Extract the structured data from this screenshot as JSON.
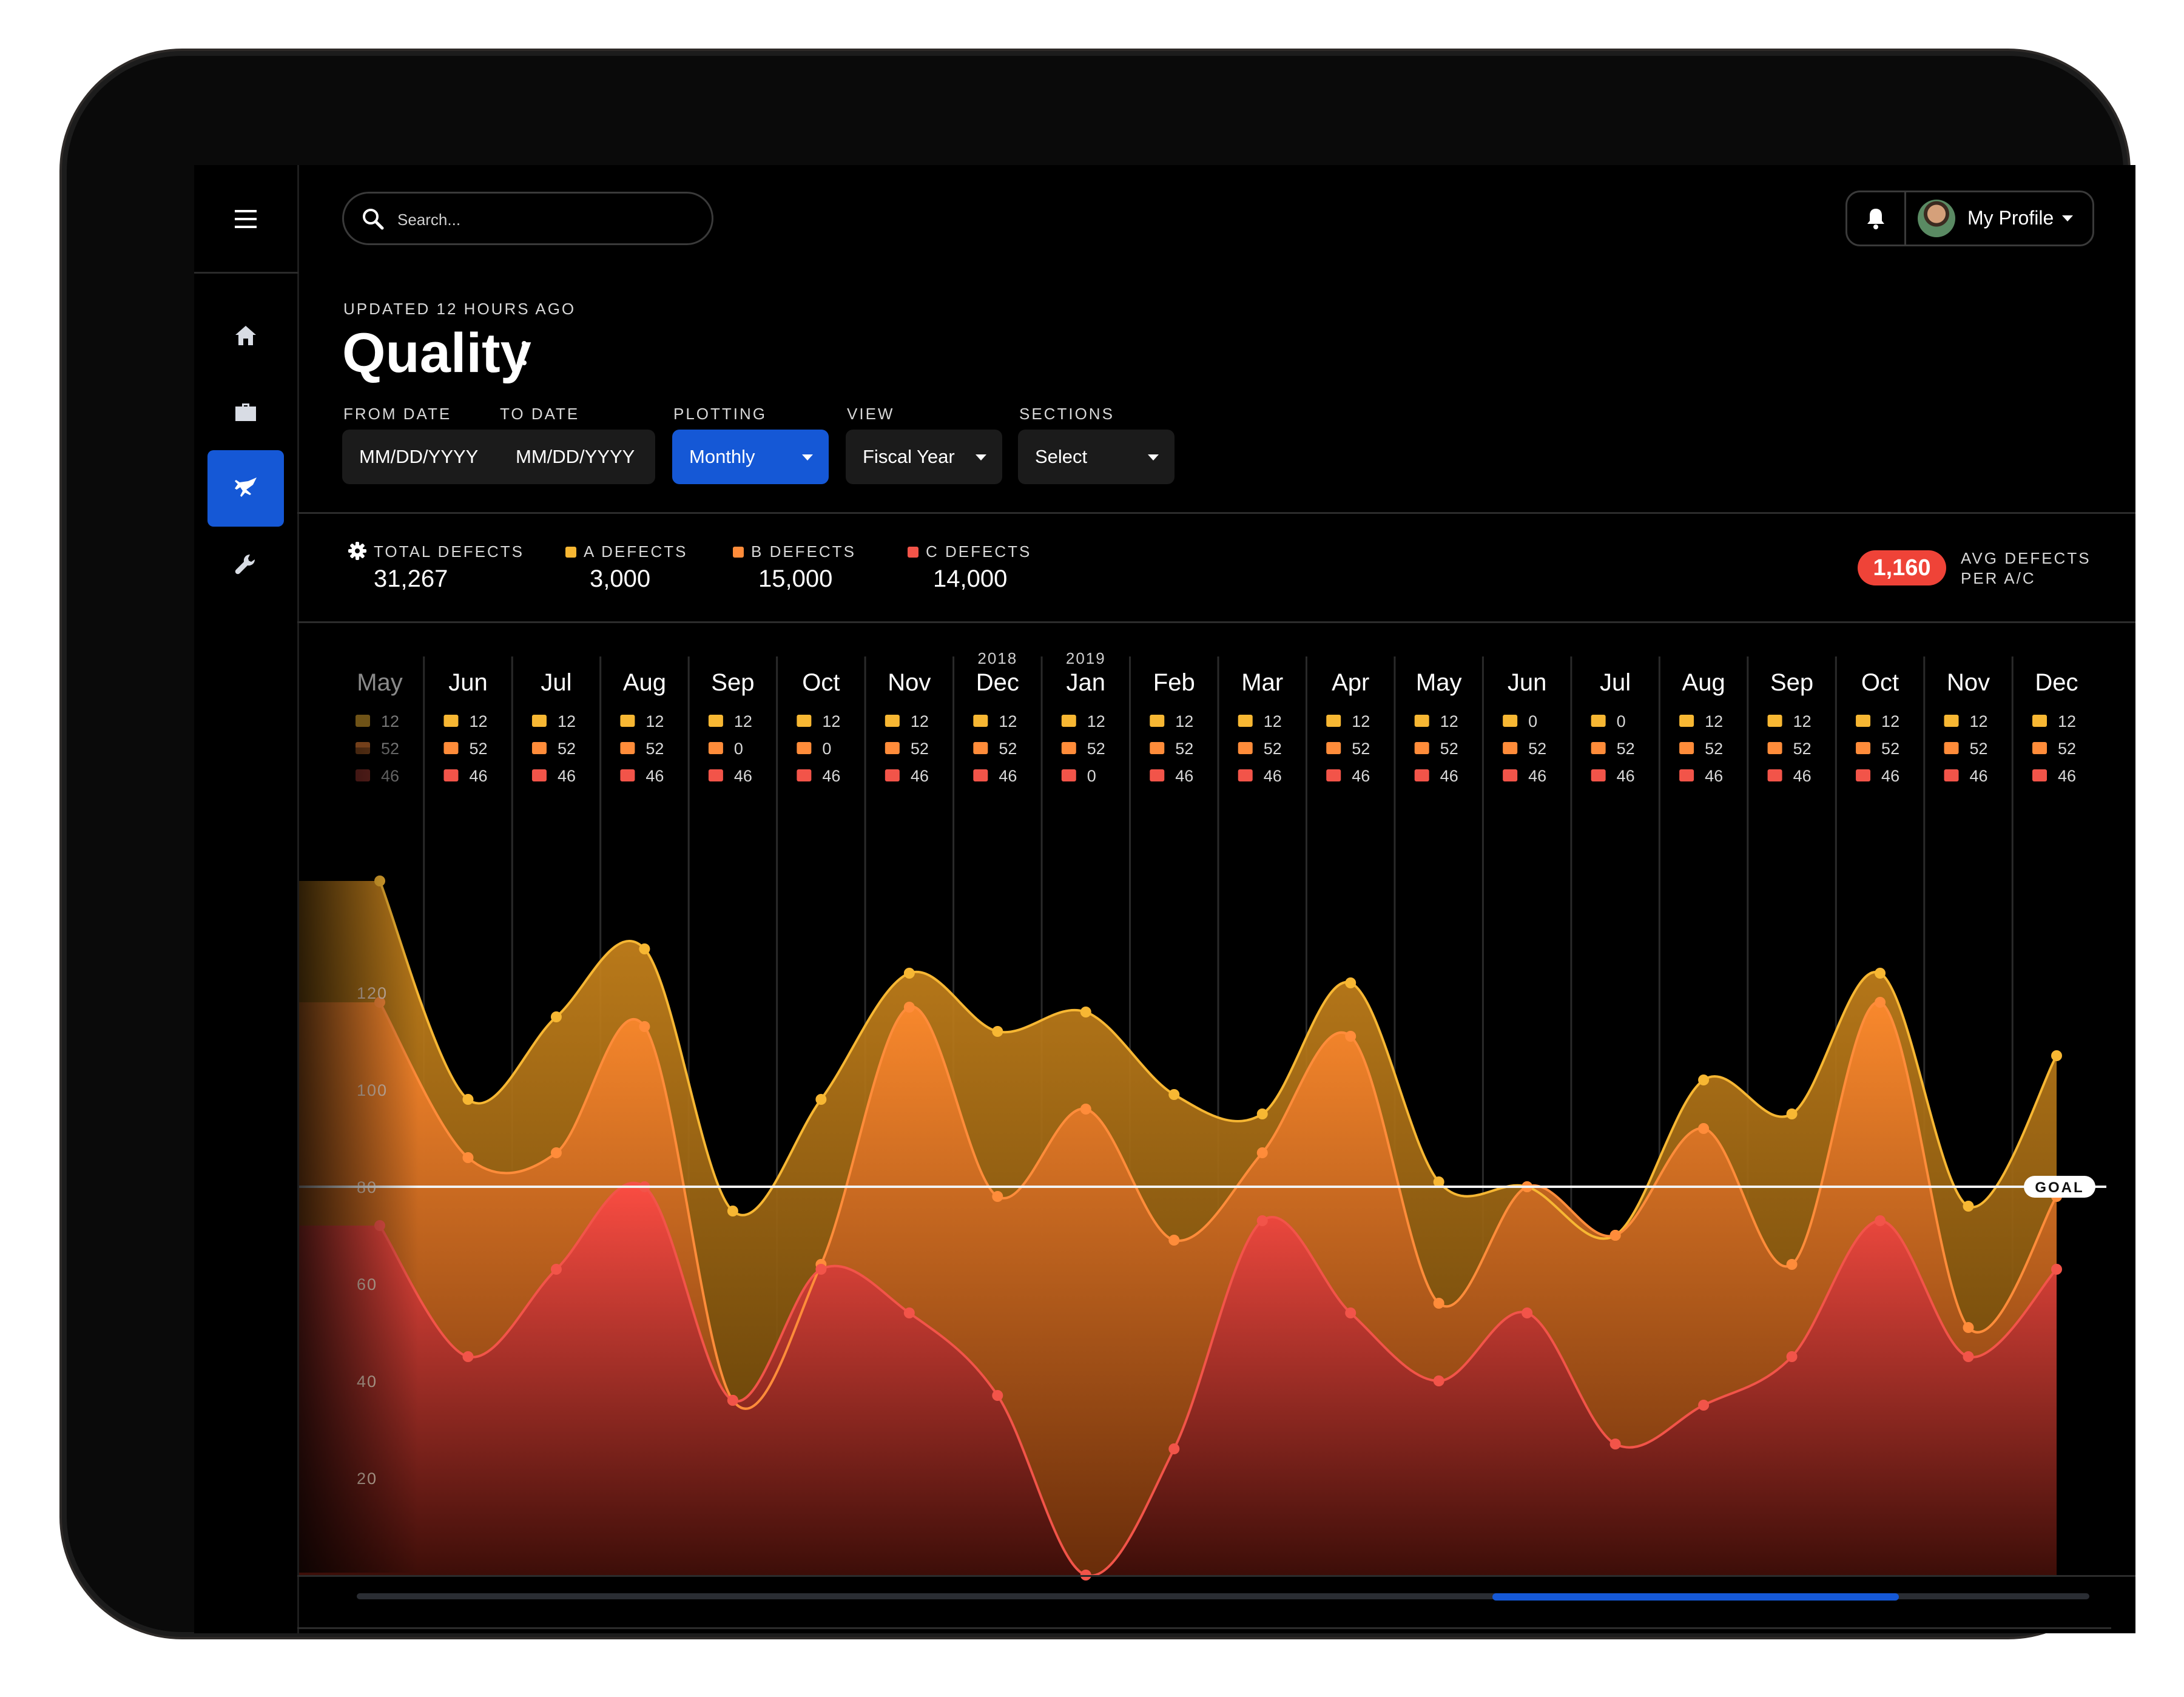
{
  "header": {
    "search_placeholder": "Search...",
    "profile_label": "My Profile"
  },
  "page": {
    "updated": "UPDATED 12 HOURS AGO",
    "title": "Quality"
  },
  "filters": {
    "from_label": "FROM DATE",
    "to_label": "TO DATE",
    "from_value": "MM/DD/YYYY",
    "to_value": "MM/DD/YYYY",
    "plotting_label": "PLOTTING",
    "plotting_value": "Monthly",
    "view_label": "VIEW",
    "view_value": "Fiscal Year",
    "sections_label": "SECTIONS",
    "sections_value": "Select"
  },
  "stats": {
    "total_label": "TOTAL DEFECTS",
    "total_value": "31,267",
    "a_label": "A DEFECTS",
    "a_value": "3,000",
    "b_label": "B DEFECTS",
    "b_value": "15,000",
    "c_label": "C DEFECTS",
    "c_value": "14,000",
    "avg_value": "1,160",
    "avg_label_1": "AVG DEFECTS",
    "avg_label_2": "PER A/C"
  },
  "colors": {
    "accent": "#1558d6",
    "a": "#f7b733",
    "b": "#ff8c3a",
    "c": "#f25449",
    "badge": "#ef4338"
  },
  "chart_data": {
    "type": "area",
    "ylim": [
      0,
      140
    ],
    "yticks": [
      20,
      40,
      60,
      80,
      100,
      120
    ],
    "goal": 80,
    "goal_label": "GOAL",
    "months": [
      "May",
      "Jun",
      "Jul",
      "Aug",
      "Sep",
      "Oct",
      "Nov",
      "Dec",
      "Jan",
      "Feb",
      "Mar",
      "Apr",
      "May",
      "Jun",
      "Jul",
      "Aug",
      "Sep",
      "Oct",
      "Nov",
      "Dec"
    ],
    "year_labels": [
      {
        "index": 7,
        "label": "2018"
      },
      {
        "index": 8,
        "label": "2019"
      }
    ],
    "legend_values": [
      [
        "12",
        "52",
        "46"
      ],
      [
        "12",
        "52",
        "46"
      ],
      [
        "12",
        "52",
        "46"
      ],
      [
        "12",
        "52",
        "46"
      ],
      [
        "12",
        "0",
        "46"
      ],
      [
        "12",
        "0",
        "46"
      ],
      [
        "12",
        "52",
        "46"
      ],
      [
        "12",
        "52",
        "46"
      ],
      [
        "12",
        "52",
        "0"
      ],
      [
        "12",
        "52",
        "46"
      ],
      [
        "12",
        "52",
        "46"
      ],
      [
        "12",
        "52",
        "46"
      ],
      [
        "12",
        "52",
        "46"
      ],
      [
        "0",
        "52",
        "46"
      ],
      [
        "0",
        "52",
        "46"
      ],
      [
        "12",
        "52",
        "46"
      ],
      [
        "12",
        "52",
        "46"
      ],
      [
        "12",
        "52",
        "46"
      ],
      [
        "12",
        "52",
        "46"
      ],
      [
        "12",
        "52",
        "46"
      ]
    ],
    "series": [
      {
        "name": "A",
        "values": [
          143,
          98,
          115,
          129,
          75,
          98,
          124,
          112,
          116,
          99,
          95,
          122,
          81,
          80,
          70,
          102,
          95,
          124,
          76,
          107
        ]
      },
      {
        "name": "B",
        "values": [
          118,
          86,
          87,
          113,
          36,
          64,
          117,
          78,
          96,
          69,
          87,
          111,
          56,
          80,
          70,
          92,
          64,
          118,
          51,
          78
        ]
      },
      {
        "name": "C",
        "values": [
          72,
          45,
          63,
          80,
          36,
          63,
          54,
          37,
          0,
          26,
          73,
          54,
          40,
          54,
          27,
          35,
          45,
          73,
          45,
          63
        ]
      }
    ]
  }
}
